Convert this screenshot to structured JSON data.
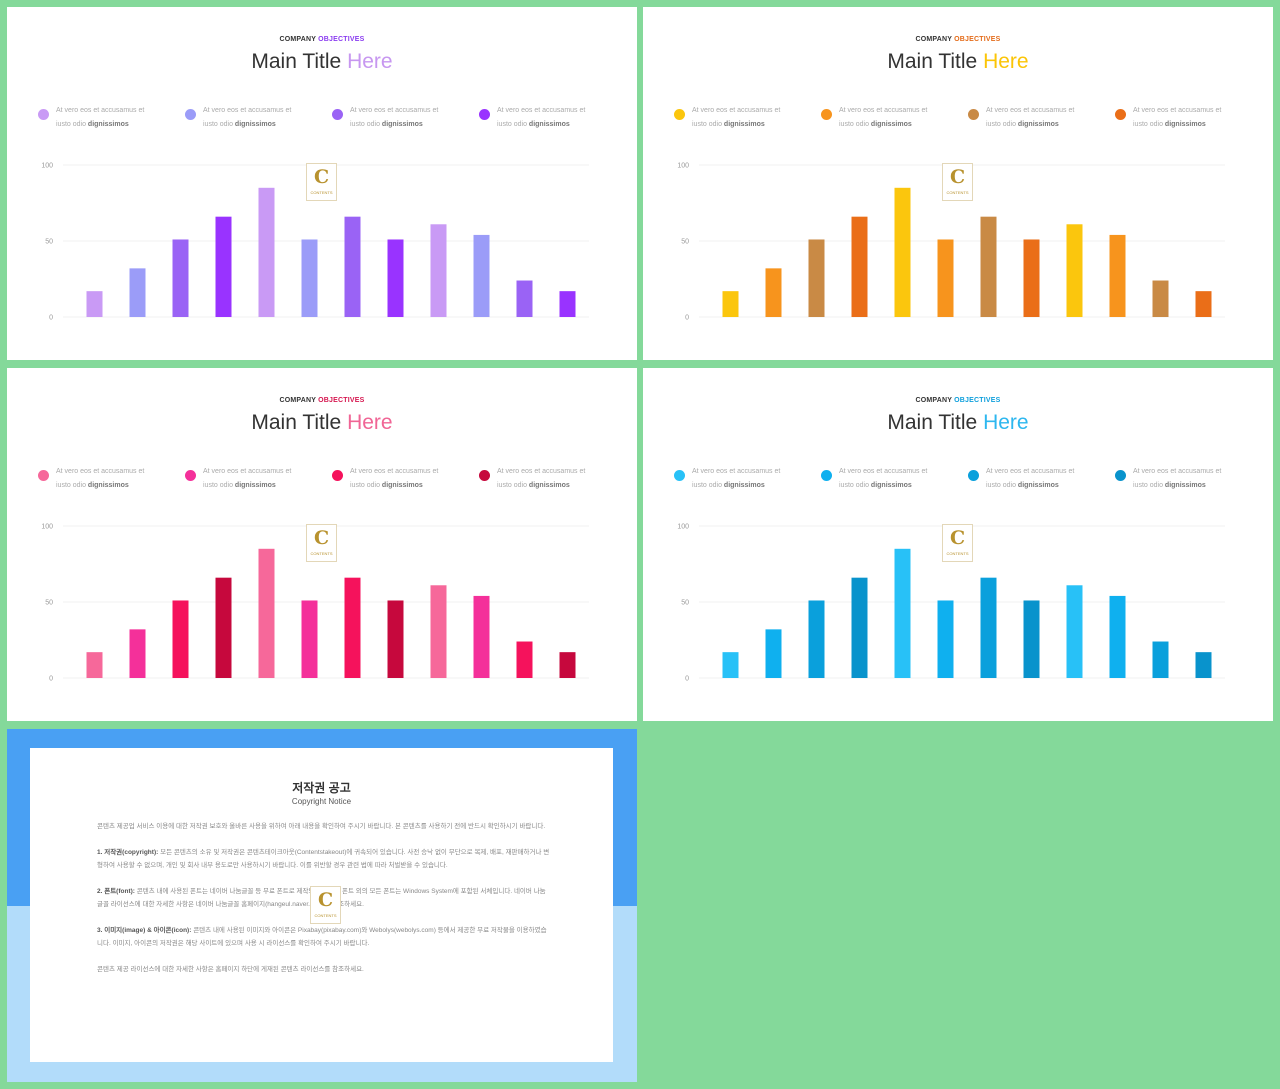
{
  "slides": [
    {
      "kicker_a": "COMPANY ",
      "kicker_b": "OBJECTIVES",
      "title_a": "Main Title ",
      "title_b": "Here",
      "accent": "#8a3cf0",
      "title_accent": "#c797f0",
      "legend": [
        {
          "line1": "At vero eos et accusamus et",
          "line2a": "iusto odio ",
          "line2b": "dignissimos",
          "color": "#c99af5"
        },
        {
          "line1": "At vero eos et accusamus et",
          "line2a": "iusto odio ",
          "line2b": "dignissimos",
          "color": "#9b9cf8"
        },
        {
          "line1": "At vero eos et accusamus et",
          "line2a": "iusto odio ",
          "line2b": "dignissimos",
          "color": "#9a63f5"
        },
        {
          "line1": "At vero eos et accusamus et",
          "line2a": "iusto odio ",
          "line2b": "dignissimos",
          "color": "#9933ff"
        }
      ],
      "bar_colors": [
        "#c99af5",
        "#9b9cf8",
        "#9a63f5",
        "#9933ff"
      ]
    },
    {
      "kicker_a": "COMPANY ",
      "kicker_b": "OBJECTIVES",
      "title_a": "Main Title ",
      "title_b": "Here",
      "accent": "#e46c1a",
      "title_accent": "#fbc507",
      "legend": [
        {
          "line1": "At vero eos et accusamus et",
          "line2a": "iusto odio ",
          "line2b": "dignissimos",
          "color": "#fbc60d"
        },
        {
          "line1": "At vero eos et accusamus et",
          "line2a": "iusto odio ",
          "line2b": "dignissimos",
          "color": "#f7941d"
        },
        {
          "line1": "At vero eos et accusamus et",
          "line2a": "iusto odio ",
          "line2b": "dignissimos",
          "color": "#c98a45"
        },
        {
          "line1": "At vero eos et accusamus et",
          "line2a": "iusto odio ",
          "line2b": "dignissimos",
          "color": "#ea6e18"
        }
      ],
      "bar_colors": [
        "#fbc60d",
        "#f7941d",
        "#c98a45",
        "#ea6e18"
      ]
    },
    {
      "kicker_a": "COMPANY ",
      "kicker_b": "OBJECTIVES",
      "title_a": "Main Title ",
      "title_b": "Here",
      "accent": "#d6164f",
      "title_accent": "#f06595",
      "legend": [
        {
          "line1": "At vero eos et accusamus et",
          "line2a": "iusto odio ",
          "line2b": "dignissimos",
          "color": "#f6689a"
        },
        {
          "line1": "At vero eos et accusamus et",
          "line2a": "iusto odio ",
          "line2b": "dignissimos",
          "color": "#f4309a"
        },
        {
          "line1": "At vero eos et accusamus et",
          "line2a": "iusto odio ",
          "line2b": "dignissimos",
          "color": "#f5125c"
        },
        {
          "line1": "At vero eos et accusamus et",
          "line2a": "iusto odio ",
          "line2b": "dignissimos",
          "color": "#c6083d"
        }
      ],
      "bar_colors": [
        "#f6689a",
        "#f4309a",
        "#f5125c",
        "#c6083d"
      ]
    },
    {
      "kicker_a": "COMPANY ",
      "kicker_b": "OBJECTIVES",
      "title_a": "Main Title ",
      "title_b": "Here",
      "accent": "#0e9fdc",
      "title_accent": "#2db7ef",
      "legend": [
        {
          "line1": "At vero eos et accusamus et",
          "line2a": "iusto odio ",
          "line2b": "dignissimos",
          "color": "#28c1f7"
        },
        {
          "line1": "At vero eos et accusamus et",
          "line2a": "iusto odio ",
          "line2b": "dignissimos",
          "color": "#0fb0ef"
        },
        {
          "line1": "At vero eos et accusamus et",
          "line2a": "iusto odio ",
          "line2b": "dignissimos",
          "color": "#0aa0dc"
        },
        {
          "line1": "At vero eos et accusamus et",
          "line2a": "iusto odio ",
          "line2b": "dignissimos",
          "color": "#0993cc"
        }
      ],
      "bar_colors": [
        "#28c1f7",
        "#0fb0ef",
        "#0aa0dc",
        "#0993cc"
      ]
    }
  ],
  "chart_data": {
    "type": "bar",
    "values": [
      17,
      32,
      51,
      66,
      85,
      51,
      66,
      51,
      61,
      54,
      24,
      17
    ],
    "color_index": [
      0,
      1,
      2,
      3,
      0,
      1,
      2,
      3,
      0,
      1,
      2,
      3
    ],
    "ylim": [
      0,
      100
    ],
    "yticks": [
      0,
      50,
      100
    ],
    "grid": true
  },
  "logo": {
    "initial": "C",
    "text": "CONTENTS"
  },
  "notice": {
    "title": "저작권 공고",
    "subtitle": "Copyright Notice",
    "intro": "콘텐츠 제공업 서비스 이용에 대한 저작권 보호와 올바른 사용을 위하여 아래 내용을 확인하여 주시기 바랍니다. 본 콘텐츠를 사용하기 전에 반드시 확인하시기 바랍니다.",
    "s1_head": "1. 저작권(copyright): ",
    "s1_body": "모든 콘텐츠의 소유 및 저작권은 콘텐츠테이크아웃(Contentstakeout)에 귀속되어 있습니다. 사전 승낙 없이 무단으로 복제, 배포, 재판매하거나 변형하여 사용할 수 없으며, 개인 및 회사 내부 용도로만 사용하시기 바랍니다. 이를 위반할 경우 관련 법에 따라 처벌받을 수 있습니다.",
    "s2_head": "2. 폰트(font): ",
    "s2_body": "콘텐츠 내에 사용된 폰트는 네이버 나눔글꼴 등 무료 폰트로 제작되었습니다. 폰트 외의 모든 폰트는 Windows System에 포함된 서체입니다. 네이버 나눔글꼴 라이선스에 대한 자세한 사항은 네이버 나눔글꼴 홈페이지(hangeul.naver.com)를 참조하세요.",
    "s3_head": "3. 이미지(image) & 아이콘(icon): ",
    "s3_body": "콘텐츠 내에 사용된 이미지와 아이콘은 Pixabay(pixabay.com)와 Webolys(webolys.com) 등에서 제공한 무료 저작물을 이용하였습니다. 이미지, 아이콘의 저작권은 해당 사이트에 있으며 사용 시 라이선스를 확인하여 주시기 바랍니다.",
    "outro": "콘텐츠 제공 라이선스에 대한 자세한 사항은 홈페이지 하단에 게재된 콘텐츠 라이선스를 참조하세요."
  }
}
